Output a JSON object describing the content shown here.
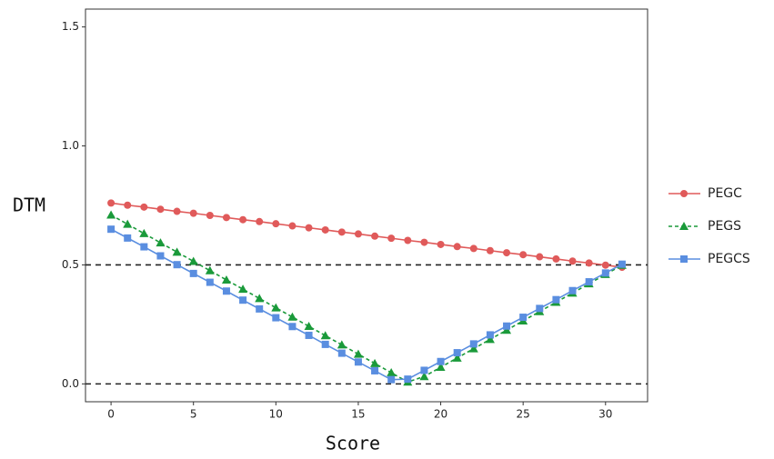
{
  "chart_data": {
    "type": "line",
    "x_label": "Score",
    "y_label": "DTM",
    "x": [
      0,
      1,
      2,
      3,
      4,
      5,
      6,
      7,
      8,
      9,
      10,
      11,
      12,
      13,
      14,
      15,
      16,
      17,
      18,
      19,
      20,
      21,
      22,
      23,
      24,
      25,
      26,
      27,
      28,
      29,
      30,
      31
    ],
    "series": [
      {
        "name": "PEGC",
        "color": "#e05a5a",
        "marker": "circle",
        "linestyle": "solid",
        "values": [
          0.76,
          0.751,
          0.743,
          0.734,
          0.725,
          0.717,
          0.708,
          0.699,
          0.69,
          0.682,
          0.673,
          0.664,
          0.656,
          0.647,
          0.638,
          0.63,
          0.621,
          0.612,
          0.603,
          0.595,
          0.586,
          0.577,
          0.569,
          0.56,
          0.551,
          0.543,
          0.534,
          0.525,
          0.516,
          0.508,
          0.499,
          0.49
        ]
      },
      {
        "name": "PEGS",
        "color": "#1a9a3a",
        "marker": "triangle",
        "linestyle": "dashed",
        "values": [
          0.71,
          0.671,
          0.632,
          0.593,
          0.554,
          0.515,
          0.476,
          0.437,
          0.398,
          0.359,
          0.32,
          0.281,
          0.242,
          0.203,
          0.164,
          0.125,
          0.086,
          0.047,
          0.008,
          0.031,
          0.07,
          0.109,
          0.148,
          0.187,
          0.226,
          0.265,
          0.304,
          0.343,
          0.382,
          0.421,
          0.46,
          0.499
        ]
      },
      {
        "name": "PEGCS",
        "color": "#5a8ee0",
        "marker": "square",
        "linestyle": "solid",
        "values": [
          0.65,
          0.613,
          0.576,
          0.538,
          0.501,
          0.464,
          0.427,
          0.39,
          0.352,
          0.315,
          0.278,
          0.241,
          0.204,
          0.166,
          0.129,
          0.092,
          0.055,
          0.018,
          0.02,
          0.057,
          0.094,
          0.131,
          0.168,
          0.206,
          0.243,
          0.28,
          0.317,
          0.354,
          0.392,
          0.429,
          0.466,
          0.503
        ]
      }
    ],
    "xlim": [
      -1.55,
      32.55
    ],
    "ylim": [
      -0.075,
      1.575
    ],
    "xticks": [
      0,
      5,
      10,
      15,
      20,
      25,
      30
    ],
    "yticks": [
      {
        "value": 0,
        "label": "0.0"
      },
      {
        "value": 0.5,
        "label": "0.5"
      },
      {
        "value": 1,
        "label": "1.0"
      },
      {
        "value": 1.5,
        "label": "1.5"
      }
    ],
    "reference_lines": [
      0,
      0.5
    ],
    "grid": false,
    "legend": "right"
  }
}
